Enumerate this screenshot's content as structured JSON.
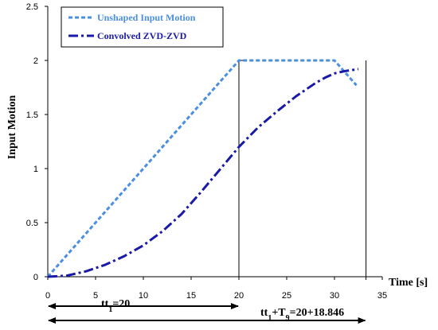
{
  "chart_data": {
    "type": "line",
    "xlabel": "Time [s]",
    "ylabel": "Input Motion",
    "xlim": [
      0,
      35
    ],
    "ylim": [
      0,
      2.5
    ],
    "xticks": [
      "0",
      "5",
      "10",
      "15",
      "20",
      "25",
      "30",
      "35"
    ],
    "yticks": [
      "0",
      "0.5",
      "1",
      "1.5",
      "2",
      "2.5"
    ],
    "grid": false,
    "legend_position": "top-left",
    "series": [
      {
        "name": "Unshaped Input Motion",
        "color": "#4a8fe0",
        "style": "dashed",
        "x": [
          0,
          20,
          30,
          32.3
        ],
        "y": [
          0,
          2,
          2,
          1.77
        ]
      },
      {
        "name": "Convolved ZVD-ZVD",
        "color": "#1a1aa8",
        "style": "dash-dot",
        "x": [
          0,
          2,
          4,
          6,
          8,
          10,
          12,
          14,
          16,
          18,
          20,
          22,
          24,
          26,
          28,
          29,
          30,
          31,
          32.5
        ],
        "y": [
          0,
          0.01,
          0.05,
          0.11,
          0.19,
          0.29,
          0.42,
          0.58,
          0.78,
          0.99,
          1.2,
          1.38,
          1.53,
          1.67,
          1.79,
          1.84,
          1.88,
          1.9,
          1.92
        ]
      }
    ],
    "annotations": {
      "label_1_main": "tt",
      "label_1_sub": "1",
      "label_1_rest": "=20",
      "label_2_main": "tt",
      "label_2_sub": "1",
      "label_2_mid": "+T",
      "label_2_sub2": "9",
      "label_2_rest": "=20+18.846",
      "arrow_1_x": [
        0,
        20
      ],
      "arrow_2_x": [
        0,
        33.3
      ],
      "vline_x": [
        20,
        33.3
      ]
    }
  }
}
